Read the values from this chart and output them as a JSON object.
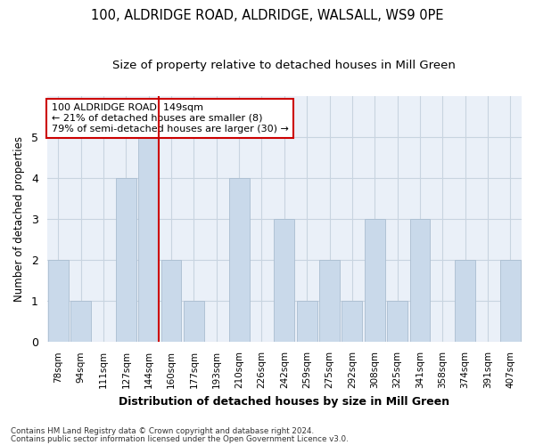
{
  "title1": "100, ALDRIDGE ROAD, ALDRIDGE, WALSALL, WS9 0PE",
  "title2": "Size of property relative to detached houses in Mill Green",
  "xlabel": "Distribution of detached houses by size in Mill Green",
  "ylabel": "Number of detached properties",
  "categories": [
    "78sqm",
    "94sqm",
    "111sqm",
    "127sqm",
    "144sqm",
    "160sqm",
    "177sqm",
    "193sqm",
    "210sqm",
    "226sqm",
    "242sqm",
    "259sqm",
    "275sqm",
    "292sqm",
    "308sqm",
    "325sqm",
    "341sqm",
    "358sqm",
    "374sqm",
    "391sqm",
    "407sqm"
  ],
  "values": [
    2,
    1,
    0,
    4,
    5,
    2,
    1,
    0,
    4,
    0,
    3,
    1,
    2,
    1,
    3,
    1,
    3,
    0,
    2,
    0,
    2
  ],
  "bar_color": "#c9d9ea",
  "bar_edgecolor": "#aabdd0",
  "highlight_index": 4,
  "highlight_line_color": "#cc0000",
  "annotation_text": "100 ALDRIDGE ROAD: 149sqm\n← 21% of detached houses are smaller (8)\n79% of semi-detached houses are larger (30) →",
  "annotation_box_edgecolor": "#cc0000",
  "ylim": [
    0,
    6
  ],
  "yticks": [
    0,
    1,
    2,
    3,
    4,
    5,
    6
  ],
  "footer1": "Contains HM Land Registry data © Crown copyright and database right 2024.",
  "footer2": "Contains public sector information licensed under the Open Government Licence v3.0.",
  "bg_color": "#ffffff",
  "plot_bg_color": "#eaf0f8",
  "grid_color": "#c8d4e0",
  "title_fontsize": 10.5,
  "subtitle_fontsize": 9.5,
  "bar_width": 0.9
}
